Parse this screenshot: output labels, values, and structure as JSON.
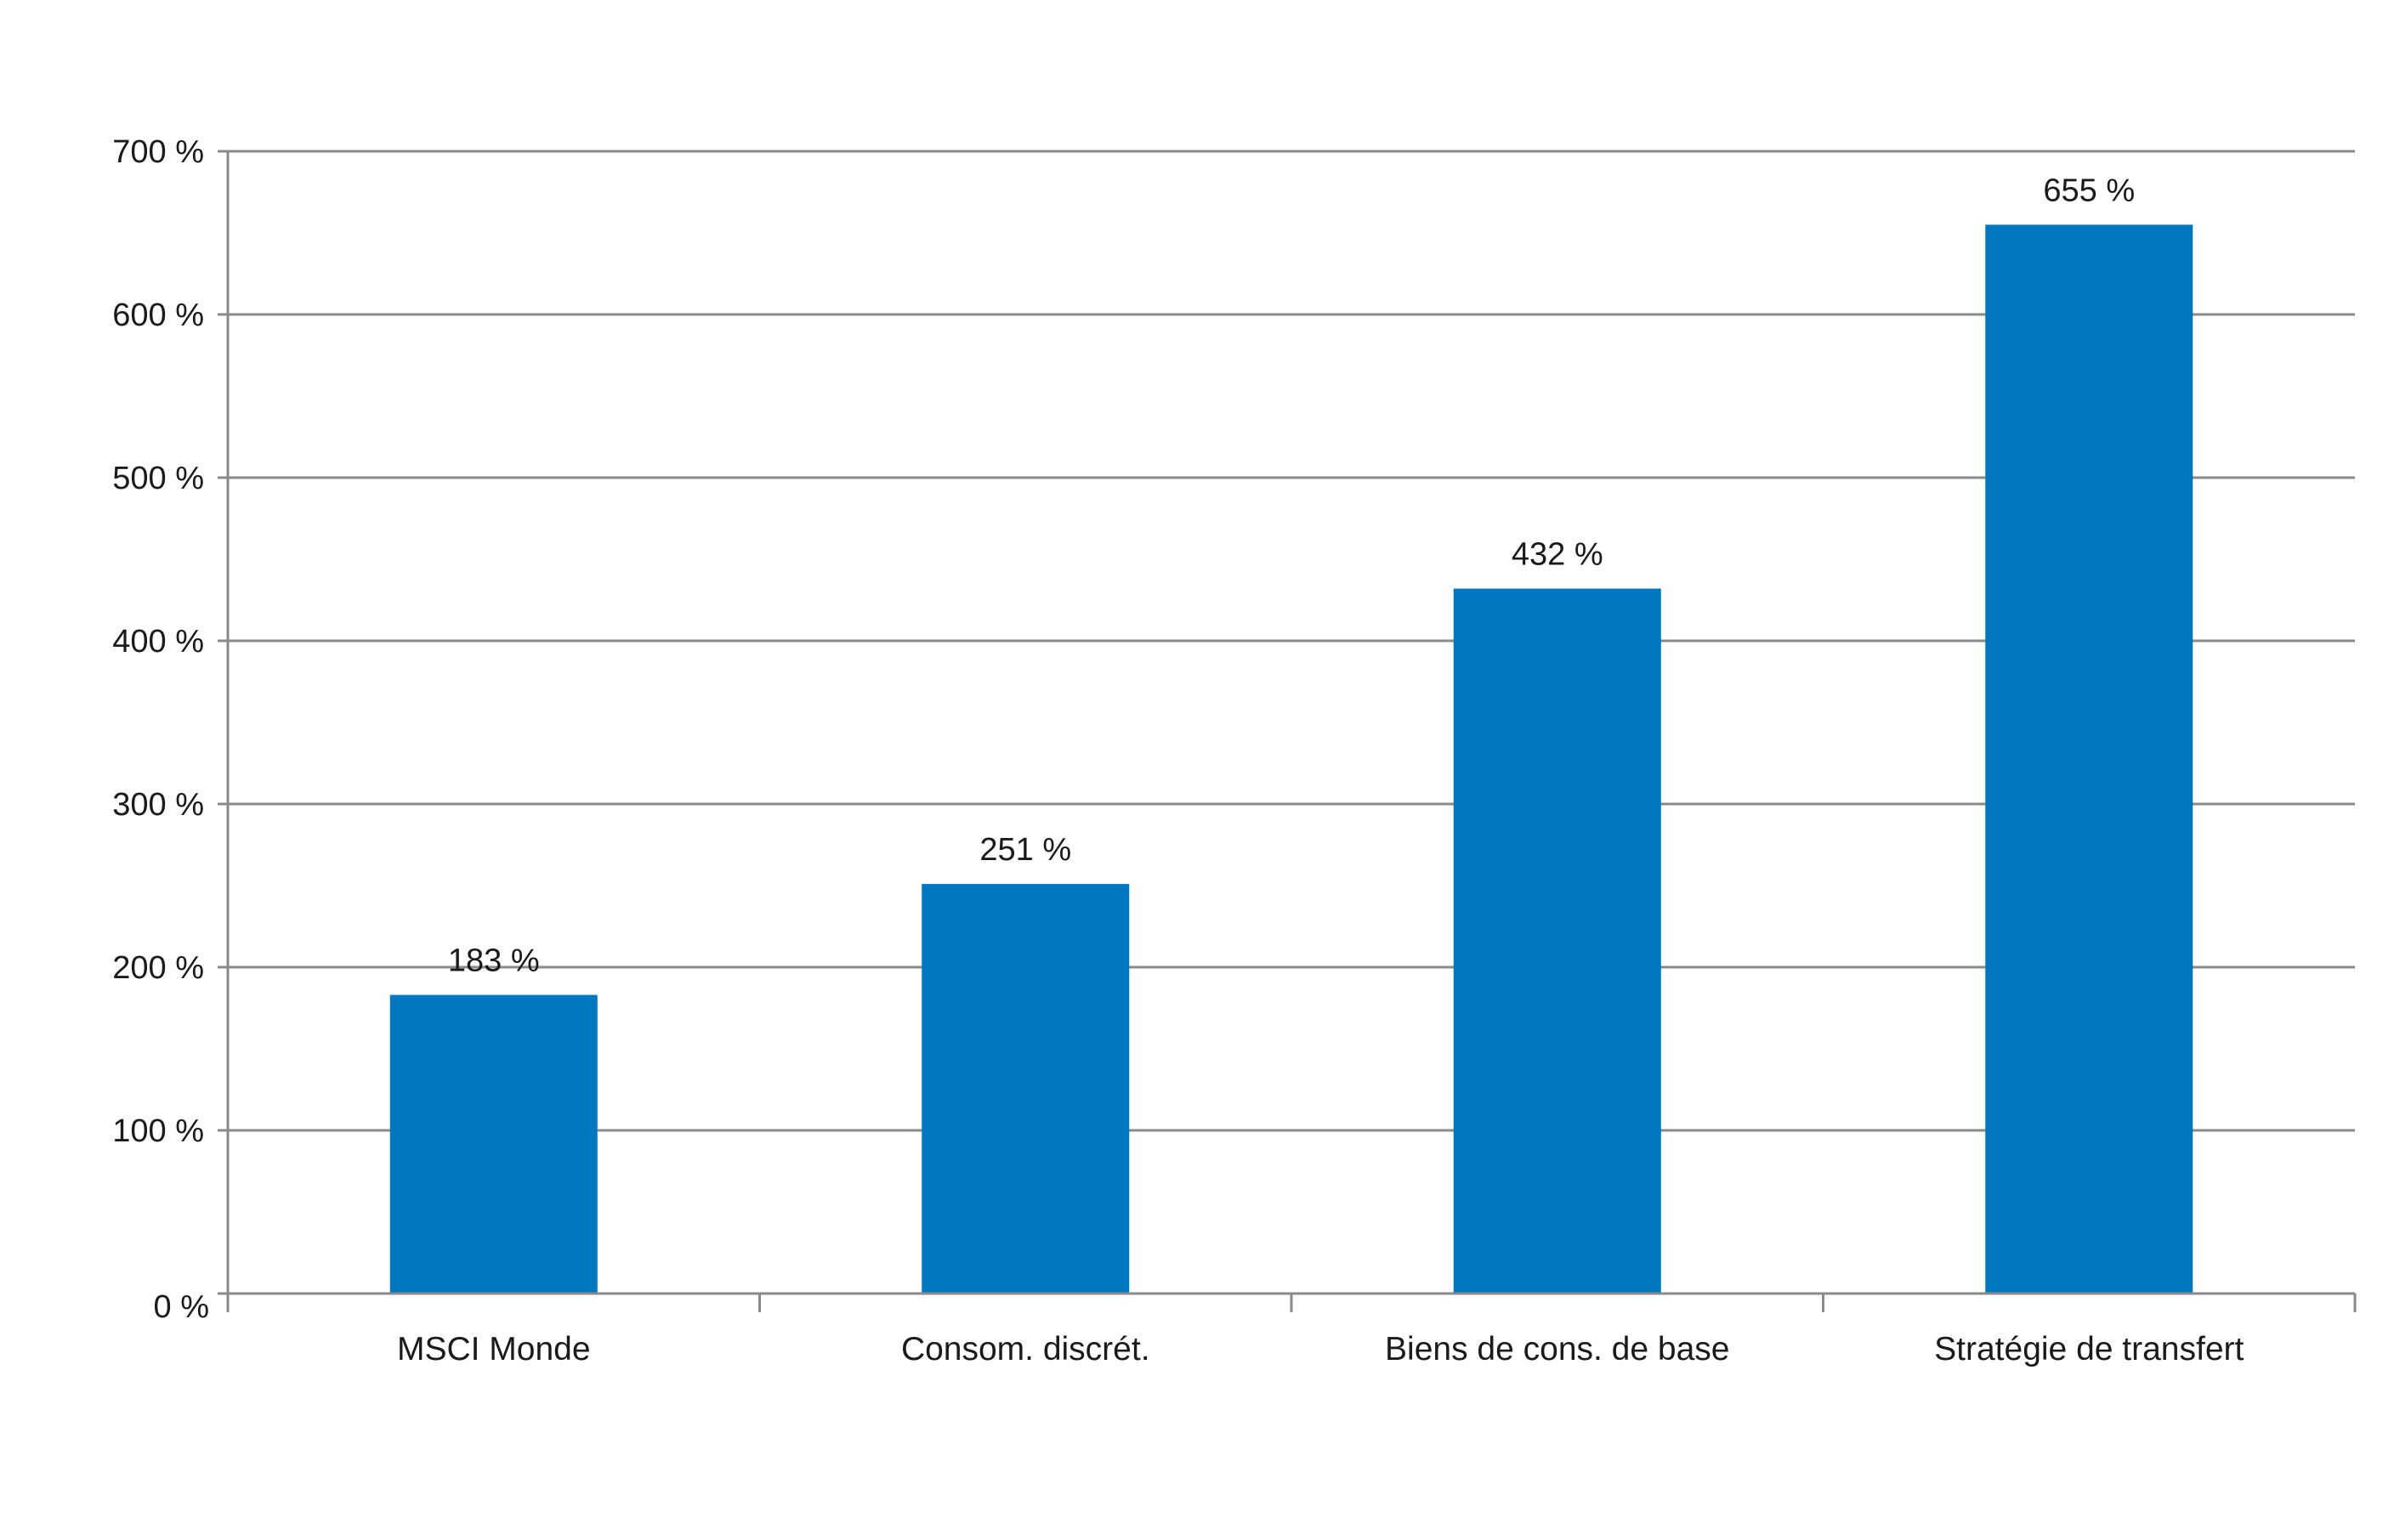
{
  "chart_data": {
    "type": "bar",
    "categories": [
      "MSCI Monde",
      "Consom. discrét.",
      "Biens de cons. de base",
      "Stratégie de transfert"
    ],
    "values": [
      183,
      251,
      432,
      655
    ],
    "data_labels": [
      "183 %",
      "251 %",
      "432 %",
      "655 %"
    ],
    "y_tick_labels": [
      "0 %",
      "100 %",
      "200 %",
      "300 %",
      "400 %",
      "500 %",
      "600 %",
      "700 %"
    ],
    "y_ticks": [
      0,
      100,
      200,
      300,
      400,
      500,
      600,
      700
    ],
    "ylim": [
      0,
      700
    ],
    "title": "",
    "xlabel": "",
    "ylabel": "",
    "grid": true,
    "legend": "none",
    "bar_color": "#0077C1",
    "grid_color": "#8A8A8A"
  }
}
